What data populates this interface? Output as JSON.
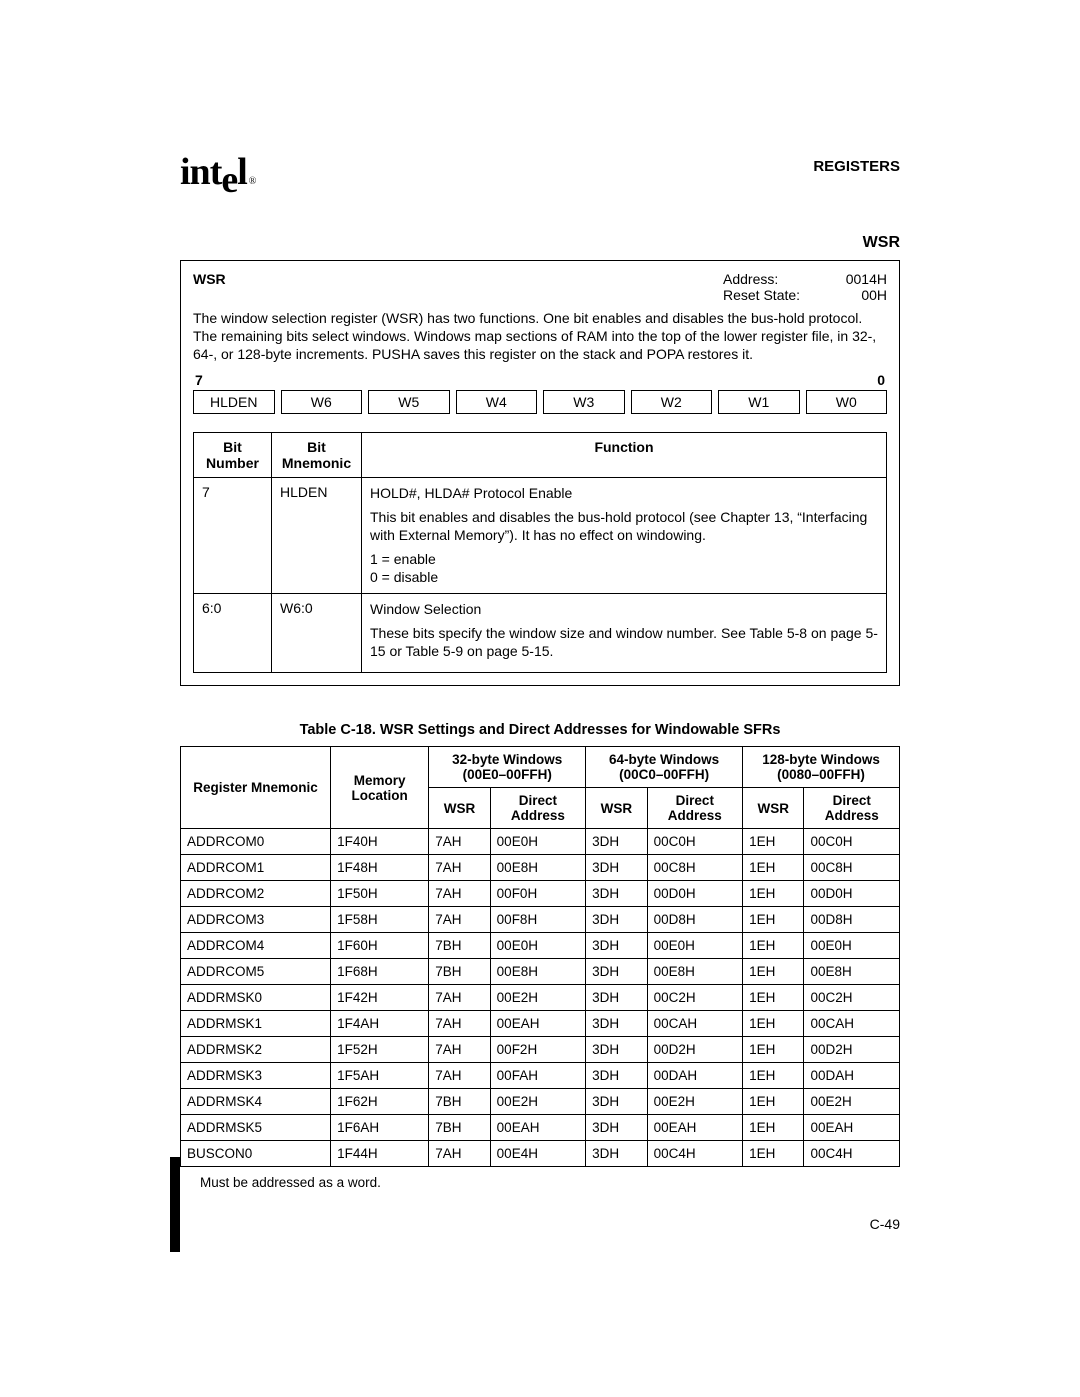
{
  "header": {
    "logo_text": "intel",
    "section": "REGISTERS",
    "reg_name": "WSR"
  },
  "register_box": {
    "name": "WSR",
    "address_label": "Address:",
    "address_value": "0014H",
    "reset_label": "Reset State:",
    "reset_value": "00H",
    "description": "The window selection register (WSR) has two functions. One bit enables and disables the bus-hold protocol. The remaining bits select windows. Windows map sections of RAM into the top of the lower register file, in 32-, 64-, or 128-byte increments. PUSHA saves this register on the stack and POPA restores it.",
    "bit_high": "7",
    "bit_low": "0",
    "bits": [
      "HLDEN",
      "W6",
      "W5",
      "W4",
      "W3",
      "W2",
      "W1",
      "W0"
    ],
    "func_headers": {
      "bn": "Bit Number",
      "bm": "Bit Mnemonic",
      "fn": "Function"
    },
    "func_rows": [
      {
        "num": "7",
        "mnem": "HLDEN",
        "lines": [
          "HOLD#, HLDA# Protocol Enable",
          "This bit enables and disables the bus-hold protocol (see Chapter 13, “Interfacing with External Memory”). It has no effect on windowing.",
          "1 = enable",
          "0 = disable"
        ]
      },
      {
        "num": "6:0",
        "mnem": "W6:0",
        "lines": [
          "Window Selection",
          "These bits specify the window size and window number. See Table 5-8 on page 5-15 or Table 5-9 on page 5-15."
        ]
      }
    ]
  },
  "sfr_table": {
    "caption": "Table C-18.  WSR Settings and Direct Addresses for Windowable SFRs",
    "top_headers": {
      "reg": "Register Mnemonic",
      "mem": "Memory Location",
      "w32": "32-byte Windows (00E0–00FFH)",
      "w64": "64-byte Windows (00C0–00FFH)",
      "w128": "128-byte Windows (0080–00FFH)"
    },
    "sub_headers": {
      "wsr": "WSR",
      "da": "Direct Address"
    },
    "rows": [
      {
        "mnem": "ADDRCOM0",
        "loc": "1F40H",
        "w32_wsr": "7AH",
        "w32_da": "00E0H",
        "w64_wsr": "3DH",
        "w64_da": "00C0H",
        "w128_wsr": "1EH",
        "w128_da": "00C0H"
      },
      {
        "mnem": "ADDRCOM1",
        "loc": "1F48H",
        "w32_wsr": "7AH",
        "w32_da": "00E8H",
        "w64_wsr": "3DH",
        "w64_da": "00C8H",
        "w128_wsr": "1EH",
        "w128_da": "00C8H"
      },
      {
        "mnem": "ADDRCOM2",
        "loc": "1F50H",
        "w32_wsr": "7AH",
        "w32_da": "00F0H",
        "w64_wsr": "3DH",
        "w64_da": "00D0H",
        "w128_wsr": "1EH",
        "w128_da": "00D0H"
      },
      {
        "mnem": "ADDRCOM3",
        "loc": "1F58H",
        "w32_wsr": "7AH",
        "w32_da": "00F8H",
        "w64_wsr": "3DH",
        "w64_da": "00D8H",
        "w128_wsr": "1EH",
        "w128_da": "00D8H"
      },
      {
        "mnem": "ADDRCOM4",
        "loc": "1F60H",
        "w32_wsr": "7BH",
        "w32_da": "00E0H",
        "w64_wsr": "3DH",
        "w64_da": "00E0H",
        "w128_wsr": "1EH",
        "w128_da": "00E0H"
      },
      {
        "mnem": "ADDRCOM5",
        "loc": "1F68H",
        "w32_wsr": "7BH",
        "w32_da": "00E8H",
        "w64_wsr": "3DH",
        "w64_da": "00E8H",
        "w128_wsr": "1EH",
        "w128_da": "00E8H"
      },
      {
        "mnem": "ADDRMSK0",
        "loc": "1F42H",
        "w32_wsr": "7AH",
        "w32_da": "00E2H",
        "w64_wsr": "3DH",
        "w64_da": "00C2H",
        "w128_wsr": "1EH",
        "w128_da": "00C2H"
      },
      {
        "mnem": "ADDRMSK1",
        "loc": "1F4AH",
        "w32_wsr": "7AH",
        "w32_da": "00EAH",
        "w64_wsr": "3DH",
        "w64_da": "00CAH",
        "w128_wsr": "1EH",
        "w128_da": "00CAH"
      },
      {
        "mnem": "ADDRMSK2",
        "loc": "1F52H",
        "w32_wsr": "7AH",
        "w32_da": "00F2H",
        "w64_wsr": "3DH",
        "w64_da": "00D2H",
        "w128_wsr": "1EH",
        "w128_da": "00D2H"
      },
      {
        "mnem": "ADDRMSK3",
        "loc": "1F5AH",
        "w32_wsr": "7AH",
        "w32_da": "00FAH",
        "w64_wsr": "3DH",
        "w64_da": "00DAH",
        "w128_wsr": "1EH",
        "w128_da": "00DAH"
      },
      {
        "mnem": "ADDRMSK4",
        "loc": "1F62H",
        "w32_wsr": "7BH",
        "w32_da": "00E2H",
        "w64_wsr": "3DH",
        "w64_da": "00E2H",
        "w128_wsr": "1EH",
        "w128_da": "00E2H"
      },
      {
        "mnem": "ADDRMSK5",
        "loc": "1F6AH",
        "w32_wsr": "7BH",
        "w32_da": "00EAH",
        "w64_wsr": "3DH",
        "w64_da": "00EAH",
        "w128_wsr": "1EH",
        "w128_da": "00EAH"
      },
      {
        "mnem": "BUSCON0",
        "loc": "1F44H",
        "w32_wsr": "7AH",
        "w32_da": "00E4H",
        "w64_wsr": "3DH",
        "w64_da": "00C4H",
        "w128_wsr": "1EH",
        "w128_da": "00C4H"
      }
    ],
    "footnote": "Must be addressed as a word."
  },
  "page_number": "C-49"
}
